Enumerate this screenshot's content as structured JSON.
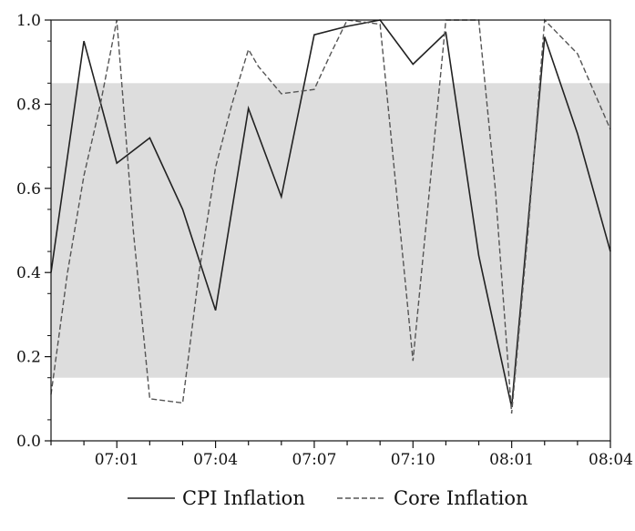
{
  "chart_data": {
    "type": "line",
    "title": "",
    "xlabel": "",
    "ylabel": "",
    "x": [
      0,
      1,
      2,
      3,
      4,
      5,
      6,
      7,
      8,
      9,
      10,
      11,
      12,
      13,
      14,
      15,
      16,
      17
    ],
    "x_tick_positions": [
      2,
      5,
      8,
      11,
      14,
      17
    ],
    "x_tick_labels": [
      "07:01",
      "07:04",
      "07:07",
      "07:10",
      "08:01",
      "08:04"
    ],
    "xlim": [
      0,
      17
    ],
    "ylim": [
      0,
      1
    ],
    "y_ticks": [
      0.0,
      0.2,
      0.4,
      0.6,
      0.8,
      1.0
    ],
    "y_tick_labels": [
      "0.0",
      "0.2",
      "0.4",
      "0.6",
      "0.8",
      "1.0"
    ],
    "shaded_band": [
      0.15,
      0.85
    ],
    "grid": false,
    "legend_position": "bottom-center",
    "series": [
      {
        "name": "CPI Inflation",
        "style": "solid",
        "color": "#222222",
        "values": [
          0.4,
          0.95,
          0.66,
          0.72,
          0.55,
          0.31,
          0.79,
          0.58,
          0.965,
          0.985,
          1.0,
          0.895,
          0.97,
          0.44,
          0.08,
          0.96,
          0.73,
          0.45
        ]
      },
      {
        "name": "Core Inflation",
        "style": "dashed",
        "color": "#555555",
        "points": [
          [
            0,
            0.11
          ],
          [
            0.5,
            0.4
          ],
          [
            1,
            0.63
          ],
          [
            1.5,
            0.8
          ],
          [
            2,
            1.0
          ],
          [
            2.5,
            0.5
          ],
          [
            3,
            0.1
          ],
          [
            4,
            0.09
          ],
          [
            4.5,
            0.4
          ],
          [
            5,
            0.65
          ],
          [
            5.5,
            0.8
          ],
          [
            6,
            0.93
          ],
          [
            6.3,
            0.89
          ],
          [
            7,
            0.825
          ],
          [
            8,
            0.835
          ],
          [
            8.5,
            0.92
          ],
          [
            9,
            1.0
          ],
          [
            10,
            0.99
          ],
          [
            11,
            0.19
          ],
          [
            12,
            1.0
          ],
          [
            13,
            1.0
          ],
          [
            13.5,
            0.6
          ],
          [
            14,
            0.065
          ],
          [
            14.5,
            0.5
          ],
          [
            15,
            1.0
          ],
          [
            16,
            0.92
          ],
          [
            17,
            0.74
          ]
        ]
      }
    ],
    "colors": {
      "band": "#dddddd",
      "axis": "#111111"
    }
  }
}
